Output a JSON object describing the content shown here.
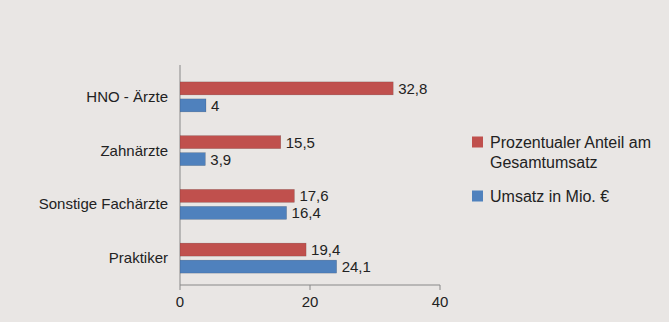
{
  "chart_data": {
    "type": "bar",
    "orientation": "horizontal",
    "categories": [
      "HNO - Ärzte",
      "Zahnärzte",
      "Sonstige Fachärzte",
      "Praktiker"
    ],
    "series": [
      {
        "name": "Prozentualer Anteil am Gesamtumsatz",
        "color": "#c0504d",
        "values": [
          32.8,
          15.5,
          17.6,
          19.4
        ],
        "value_labels": [
          "32,8",
          "15,5",
          "17,6",
          "19,4"
        ]
      },
      {
        "name": "Umsatz in Mio. €",
        "color": "#4f81bd",
        "values": [
          4,
          3.9,
          16.4,
          24.1
        ],
        "value_labels": [
          "4",
          "3,9",
          "16,4",
          "24,1"
        ]
      }
    ],
    "xlim": [
      0,
      40
    ],
    "xticks": [
      0,
      20,
      40
    ],
    "grid": false,
    "data_labels": true,
    "legend": "right"
  }
}
